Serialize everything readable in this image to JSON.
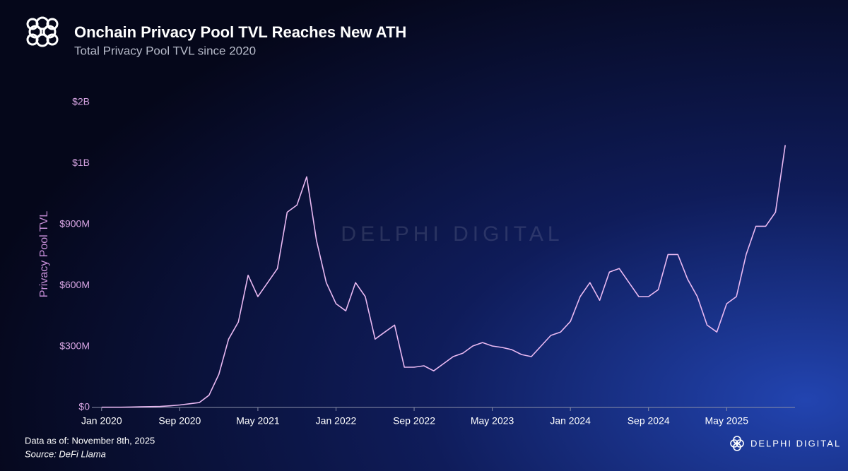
{
  "chart_data": {
    "type": "line",
    "title": "Onchain Privacy Pool TVL Reaches New ATH",
    "subtitle": "Total Privacy Pool TVL since 2020",
    "y_label": "Privacy Pool TVL",
    "note": "Data as of: November 8th, 2025",
    "source": "Source: DeFi Llama",
    "watermark": "DELPHI DIGITAL",
    "brand": "DELPHI DIGITAL",
    "color": "#e9b9f2",
    "x": [
      "2020-01",
      "2020-02",
      "2020-03",
      "2020-04",
      "2020-05",
      "2020-06",
      "2020-07",
      "2020-08",
      "2020-09",
      "2020-10",
      "2020-11",
      "2020-12",
      "2021-01",
      "2021-02",
      "2021-03",
      "2021-04",
      "2021-05",
      "2021-06",
      "2021-07",
      "2021-08",
      "2021-09",
      "2021-10",
      "2021-11",
      "2021-12",
      "2022-01",
      "2022-02",
      "2022-03",
      "2022-04",
      "2022-05",
      "2022-06",
      "2022-07",
      "2022-08",
      "2022-09",
      "2022-10",
      "2022-11",
      "2022-12",
      "2023-01",
      "2023-02",
      "2023-03",
      "2023-04",
      "2023-05",
      "2023-06",
      "2023-07",
      "2023-08",
      "2023-09",
      "2023-10",
      "2023-11",
      "2023-12",
      "2024-01",
      "2024-02",
      "2024-03",
      "2024-04",
      "2024-05",
      "2024-06",
      "2024-07",
      "2024-08",
      "2024-09",
      "2024-10",
      "2024-11",
      "2024-12",
      "2025-01",
      "2025-02",
      "2025-03",
      "2025-04",
      "2025-05",
      "2025-06",
      "2025-07",
      "2025-08",
      "2025-09",
      "2025-10",
      "2025-11"
    ],
    "values": [
      1000000,
      1000000,
      1000000,
      2000000,
      3000000,
      4000000,
      5000000,
      8000000,
      12000000,
      18000000,
      24000000,
      60000000,
      163000000,
      336000000,
      420000000,
      650000000,
      545000000,
      614000000,
      683000000,
      960000000,
      995000000,
      1134000000,
      822000000,
      614000000,
      510000000,
      475000000,
      614000000,
      545000000,
      336000000,
      371000000,
      405000000,
      198000000,
      198000000,
      205000000,
      180000000,
      215000000,
      250000000,
      267000000,
      302000000,
      319000000,
      302000000,
      295000000,
      284000000,
      260000000,
      250000000,
      302000000,
      354000000,
      371000000,
      423000000,
      545000000,
      614000000,
      527000000,
      666000000,
      683000000,
      614000000,
      545000000,
      545000000,
      579000000,
      752000000,
      752000000,
      631000000,
      545000000,
      405000000,
      371000000,
      510000000,
      545000000,
      752000000,
      891000000,
      891000000,
      960000000,
      1290000000
    ],
    "xlim": [
      "2019-12",
      "2025-12"
    ],
    "xticks": [
      {
        "value": "2020-01",
        "label": "Jan 2020"
      },
      {
        "value": "2020-09",
        "label": "Sep 2020"
      },
      {
        "value": "2021-05",
        "label": "May 2021"
      },
      {
        "value": "2022-01",
        "label": "Jan 2022"
      },
      {
        "value": "2022-09",
        "label": "Sep 2022"
      },
      {
        "value": "2023-05",
        "label": "May 2023"
      },
      {
        "value": "2024-01",
        "label": "Jan 2024"
      },
      {
        "value": "2024-09",
        "label": "Sep 2024"
      },
      {
        "value": "2025-05",
        "label": "May 2025"
      }
    ],
    "ylim": [
      0,
      1500000000
    ],
    "yticks": [
      {
        "value": 0,
        "label": "$0"
      },
      {
        "value": 300000000,
        "label": "$300M"
      },
      {
        "value": 600000000,
        "label": "$600M"
      },
      {
        "value": 900000000,
        "label": "$900M"
      },
      {
        "value": 1200000000,
        "label": "$1B"
      },
      {
        "value": 1500000000,
        "label": "$2B"
      }
    ],
    "grid": false
  }
}
